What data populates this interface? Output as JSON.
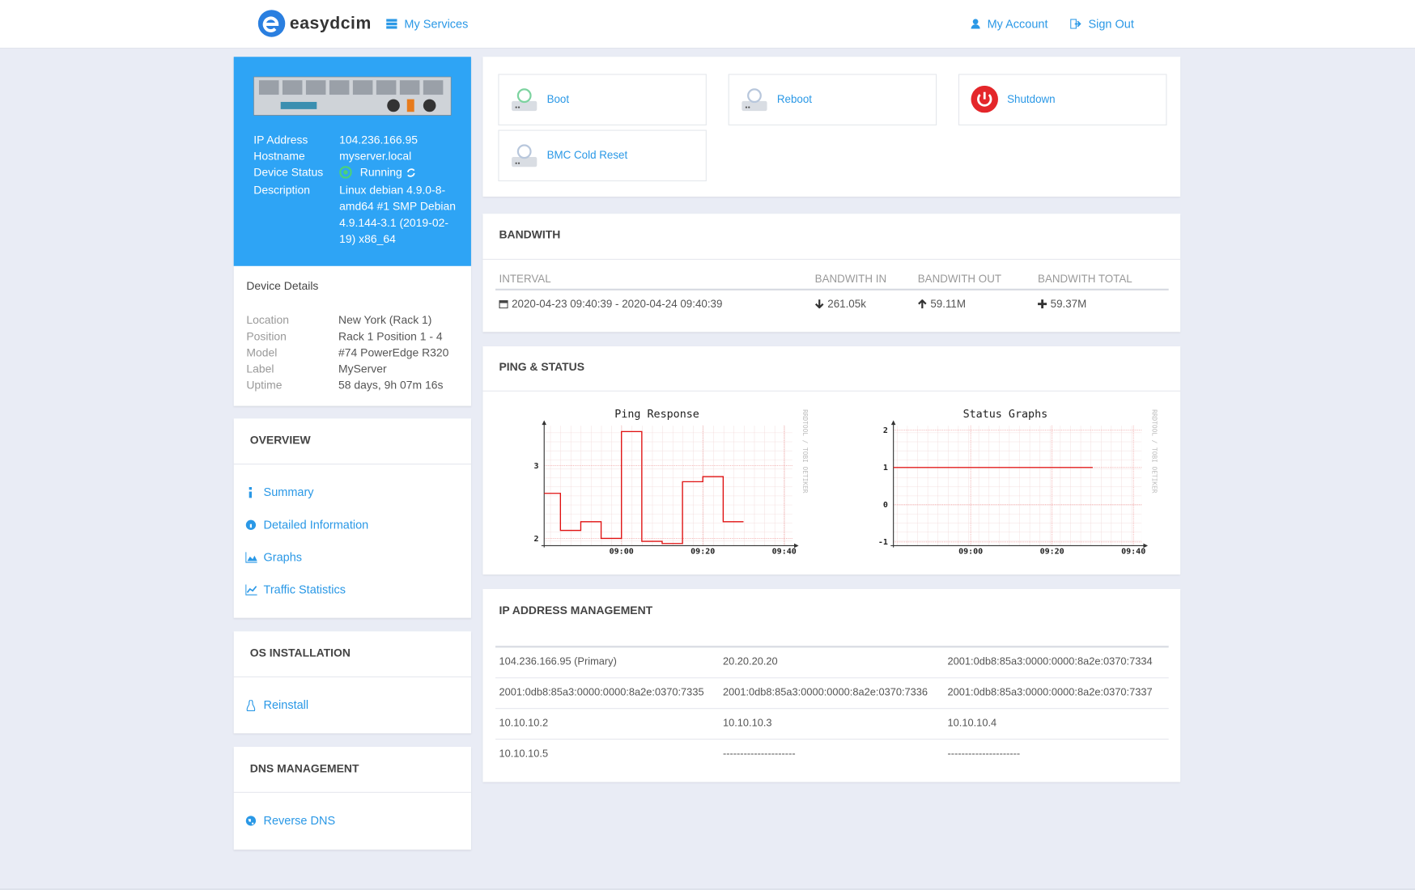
{
  "header": {
    "brand": "easydcim",
    "nav": "My Services",
    "account": "My Account",
    "signout": "Sign Out"
  },
  "device": {
    "fields": [
      {
        "label": "IP Address",
        "value": "104.236.166.95"
      },
      {
        "label": "Hostname",
        "value": "myserver.local"
      },
      {
        "label": "Device Status",
        "value": "Running"
      },
      {
        "label": "Description",
        "value": "Linux debian 4.9.0-8-amd64 #1 SMP Debian 4.9.144-3.1 (2019-02-19) x86_64"
      }
    ]
  },
  "details": {
    "title": "Device Details",
    "fields": [
      {
        "label": "Location",
        "value": "New York (Rack 1)"
      },
      {
        "label": "Position",
        "value": "Rack 1 Position 1 - 4"
      },
      {
        "label": "Model",
        "value": "#74 PowerEdge R320"
      },
      {
        "label": "Label",
        "value": "MyServer"
      },
      {
        "label": "Uptime",
        "value": "58 days, 9h 07m 16s"
      }
    ]
  },
  "overview": {
    "title": "OVERVIEW",
    "links": [
      "Summary",
      "Detailed Information",
      "Graphs",
      "Traffic Statistics"
    ]
  },
  "os": {
    "title": "OS INSTALLATION",
    "links": [
      "Reinstall"
    ]
  },
  "dns": {
    "title": "DNS MANAGEMENT",
    "links": [
      "Reverse DNS"
    ]
  },
  "actions": [
    "Boot",
    "Reboot",
    "Shutdown",
    "BMC Cold Reset"
  ],
  "bandwidth": {
    "title": "BANDWITH",
    "columns": [
      "INTERVAL",
      "BANDWITH IN",
      "BANDWITH OUT",
      "BANDWITH TOTAL"
    ],
    "rows": [
      [
        "2020-04-23 09:40:39 - 2020-04-24 09:40:39",
        "261.05k",
        "59.11M",
        "59.37M"
      ]
    ]
  },
  "ping": {
    "title": "PING & STATUS",
    "graphs": [
      {
        "title": "Ping Response",
        "watermark": "RRDTOOL / TOBI OETIKER",
        "xlim": [
          "08:41",
          "09:42"
        ],
        "xticks": [
          "09:00",
          "09:20",
          "09:40"
        ],
        "ylim": [
          1.9,
          3.55
        ],
        "yticks": [
          2,
          3
        ],
        "x": [
          "08:41",
          "08:45",
          "08:50",
          "08:55",
          "09:00",
          "09:05",
          "09:10",
          "09:15",
          "09:20",
          "09:25",
          "09:30"
        ],
        "values": [
          2.62,
          2.11,
          2.23,
          2.0,
          3.47,
          1.96,
          1.93,
          2.78,
          2.85,
          2.23,
          2.23
        ],
        "color": "#e01010"
      },
      {
        "title": "Status Graphs",
        "watermark": "RRDTOOL / TOBI OETIKER",
        "xlim": [
          "08:41",
          "09:42"
        ],
        "xticks": [
          "09:00",
          "09:20",
          "09:40"
        ],
        "ylim": [
          -1.1,
          2.12
        ],
        "yticks": [
          2,
          1,
          0,
          -1
        ],
        "x": [
          "08:41",
          "09:30"
        ],
        "values": [
          1,
          1
        ],
        "color": "#e01010"
      }
    ]
  },
  "ipam": {
    "title": "IP ADDRESS MANAGEMENT",
    "rows": [
      [
        "104.236.166.95 (Primary)",
        "20.20.20.20",
        "2001:0db8:85a3:0000:0000:8a2e:0370:7334"
      ],
      [
        "2001:0db8:85a3:0000:0000:8a2e:0370:7335",
        "2001:0db8:85a3:0000:0000:8a2e:0370:7336",
        "2001:0db8:85a3:0000:0000:8a2e:0370:7337"
      ],
      [
        "10.10.10.2",
        "10.10.10.3",
        "10.10.10.4"
      ],
      [
        "10.10.10.5",
        "---------------------",
        "---------------------"
      ]
    ]
  }
}
